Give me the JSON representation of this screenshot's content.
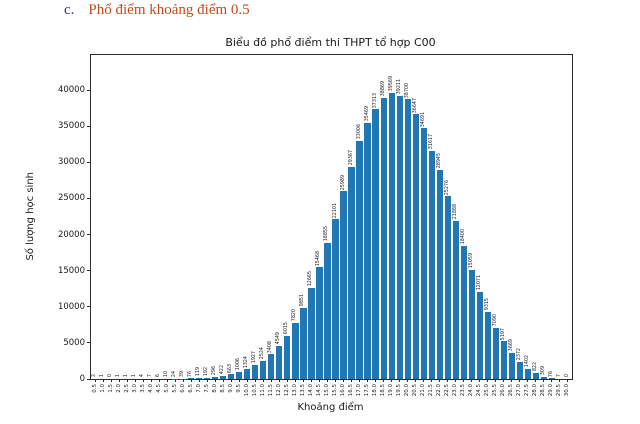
{
  "heading": {
    "prefix": "c.",
    "text": "Phổ điểm khoảng điểm 0.5",
    "prefix_color": "#2d35a0",
    "text_color": "#c2491d"
  },
  "chart_data": {
    "type": "bar",
    "title": "Biểu đồ phổ điểm thi THPT tổ hợp C00",
    "xlabel": "Khoảng điểm",
    "ylabel": "Số lượng học sinh",
    "bar_color": "#1f77b4",
    "grid": false,
    "legend": "none",
    "bar_value_labels_rotated": true,
    "ylim": [
      0,
      44850
    ],
    "yticks": [
      0,
      5000,
      10000,
      15000,
      20000,
      25000,
      30000,
      35000,
      40000
    ],
    "categories": [
      "0.5",
      "1.0",
      "1.5",
      "2.0",
      "2.5",
      "3.0",
      "3.5",
      "4.0",
      "4.5",
      "5.0",
      "5.5",
      "6.0",
      "6.5",
      "7.0",
      "7.5",
      "8.0",
      "8.5",
      "9.0",
      "9.5",
      "10.0",
      "10.5",
      "11.0",
      "11.5",
      "12.0",
      "12.5",
      "13.0",
      "13.5",
      "14.0",
      "14.5",
      "15.0",
      "15.5",
      "16.0",
      "16.5",
      "17.0",
      "17.5",
      "18.0",
      "18.5",
      "19.0",
      "19.5",
      "20.0",
      "20.5",
      "21.0",
      "21.5",
      "22.0",
      "22.5",
      "23.0",
      "23.5",
      "24.0",
      "24.5",
      "25.0",
      "25.5",
      "26.0",
      "26.5",
      "27.0",
      "27.5",
      "28.0",
      "28.5",
      "29.0",
      "29.5",
      "30.0"
    ],
    "values": [
      2,
      1,
      0,
      1,
      1,
      1,
      4,
      7,
      6,
      10,
      24,
      39,
      76,
      119,
      192,
      296,
      422,
      663,
      1006,
      1324,
      1927,
      2524,
      3408,
      4549,
      6015,
      7820,
      9851,
      12665,
      15468,
      18855,
      22101,
      25989,
      29367,
      33006,
      35469,
      37313,
      38869,
      39569,
      39211,
      38700,
      36647,
      34691,
      31617,
      28945,
      25276,
      21888,
      18400,
      15059,
      12071,
      9315,
      7090,
      5197,
      3669,
      2372,
      1402,
      822,
      309,
      76,
      7,
      0
    ]
  }
}
